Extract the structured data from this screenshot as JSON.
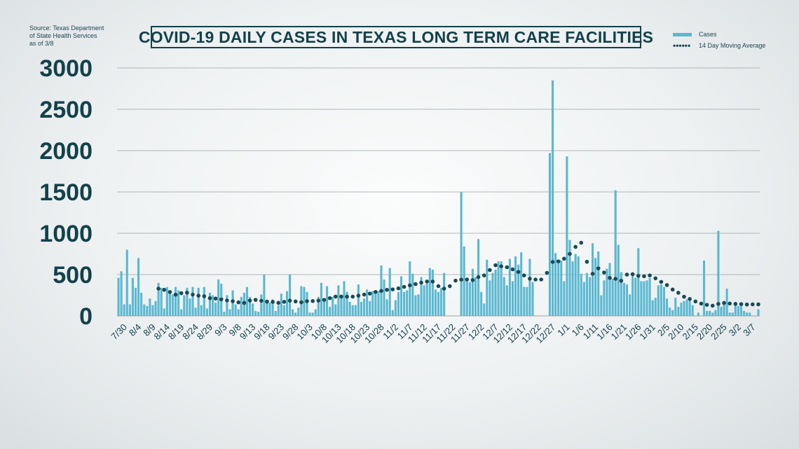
{
  "source_lines": [
    "Source: Texas Department",
    "of State Health Services",
    "as of 3/8"
  ],
  "colors": {
    "bar": "#5bb8d0",
    "avg": "#1b4a55",
    "axis_text": "#13414b",
    "grid": "#9aa3a6"
  },
  "chart_data": {
    "type": "bar",
    "title": "COVID-19 DAILY CASES IN TEXAS LONG TERM CARE FACILITIES",
    "xlabel": "",
    "ylabel": "",
    "ylim": [
      0,
      3000
    ],
    "yticks": [
      0,
      500,
      1000,
      1500,
      2000,
      2500,
      3000
    ],
    "grid": true,
    "legend_position": "top-right",
    "x_tick_labels": [
      "7/30",
      "8/4",
      "8/9",
      "8/14",
      "8/19",
      "8/24",
      "8/29",
      "9/3",
      "9/8",
      "9/13",
      "9/18",
      "9/23",
      "9/28",
      "10/3",
      "10/8",
      "10/13",
      "10/18",
      "10/23",
      "10/28",
      "11/2",
      "11/7",
      "11/12",
      "11/17",
      "11/22",
      "11/27",
      "12/2",
      "12/7",
      "12/12",
      "12/17",
      "12/22",
      "12/27",
      "1/1",
      "1/6",
      "1/11",
      "1/16",
      "1/21",
      "1/26",
      "1/31",
      "2/5",
      "2/10",
      "2/15",
      "2/20",
      "2/25",
      "3/2",
      "3/7"
    ],
    "x_tick_step_days": 5,
    "series": [
      {
        "name": "Cases",
        "type": "bar",
        "values": [
          460,
          540,
          140,
          800,
          140,
          460,
          340,
          700,
          280,
          140,
          120,
          210,
          130,
          180,
          400,
          340,
          90,
          350,
          290,
          260,
          350,
          310,
          80,
          250,
          340,
          210,
          350,
          100,
          340,
          130,
          350,
          90,
          280,
          250,
          160,
          440,
          390,
          50,
          250,
          80,
          310,
          140,
          80,
          230,
          280,
          350,
          230,
          150,
          60,
          50,
          260,
          500,
          190,
          160,
          200,
          60,
          130,
          270,
          130,
          300,
          500,
          80,
          40,
          100,
          360,
          350,
          290,
          40,
          40,
          80,
          230,
          400,
          210,
          360,
          110,
          230,
          140,
          370,
          230,
          420,
          290,
          170,
          130,
          130,
          380,
          170,
          210,
          320,
          180,
          300,
          270,
          300,
          610,
          440,
          200,
          580,
          70,
          190,
          290,
          480,
          290,
          310,
          660,
          510,
          250,
          260,
          470,
          370,
          390,
          580,
          560,
          320,
          290,
          340,
          520,
          0,
          0,
          0,
          0,
          0,
          1500,
          840,
          420,
          410,
          570,
          470,
          930,
          290,
          150,
          680,
          430,
          520,
          560,
          660,
          660,
          470,
          370,
          690,
          420,
          720,
          620,
          770,
          350,
          350,
          690,
          410,
          0,
          0,
          0,
          0,
          0,
          1970,
          2850,
          760,
          650,
          670,
          420,
          1930,
          920,
          660,
          750,
          720,
          510,
          410,
          520,
          470,
          880,
          700,
          780,
          250,
          430,
          570,
          640,
          450,
          1520,
          860,
          530,
          400,
          380,
          260,
          490,
          460,
          820,
          420,
          420,
          430,
          460,
          190,
          220,
          370,
          380,
          350,
          210,
          100,
          70,
          220,
          110,
          160,
          180,
          200,
          210,
          130,
          0,
          40,
          0,
          670,
          60,
          60,
          40,
          70,
          1030,
          110,
          160,
          330,
          40,
          40,
          170,
          120,
          140,
          60,
          40,
          40,
          0,
          0,
          80
        ]
      },
      {
        "name": "14 Day Moving Average",
        "type": "line",
        "values": [
          null,
          null,
          null,
          null,
          null,
          null,
          null,
          null,
          null,
          null,
          null,
          null,
          null,
          null,
          330,
          326,
          316,
          303,
          289,
          273,
          257,
          262,
          275,
          287,
          281,
          272,
          258,
          246,
          245,
          243,
          238,
          224,
          215,
          212,
          210,
          202,
          200,
          194,
          187,
          183,
          178,
          171,
          164,
          158,
          157,
          177,
          186,
          180,
          194,
          188,
          183,
          183,
          173,
          173,
          170,
          160,
          158,
          167,
          170,
          174,
          185,
          178,
          175,
          165,
          165,
          173,
          178,
          174,
          180,
          182,
          185,
          190,
          195,
          205,
          215,
          228,
          234,
          237,
          234,
          232,
          233,
          233,
          233,
          242,
          245,
          250,
          258,
          264,
          270,
          275,
          290,
          300,
          303,
          315,
          315,
          318,
          321,
          326,
          333,
          342,
          351,
          360,
          370,
          378,
          385,
          394,
          403,
          413,
          416,
          417,
          416,
          385,
          360,
          340,
          330,
          330,
          360,
          403,
          427,
          433,
          439,
          440,
          440,
          440,
          433,
          454,
          470,
          480,
          490,
          516,
          555,
          593,
          613,
          603,
          600,
          607,
          589,
          570,
          563,
          556,
          532,
          510,
          490,
          470,
          450,
          440,
          440,
          440,
          440,
          460,
          521,
          614,
          653,
          660,
          660,
          660,
          692,
          726,
          750,
          790,
          835,
          877,
          885,
          760,
          655,
          560,
          510,
          560,
          575,
          560,
          525,
          500,
          460,
          440,
          449,
          450,
          425,
          450,
          500,
          500,
          505,
          490,
          485,
          490,
          480,
          485,
          490,
          473,
          455,
          430,
          412,
          393,
          373,
          349,
          319,
          300,
          280,
          255,
          232,
          218,
          205,
          187,
          175,
          160,
          149,
          141,
          134,
          128,
          124,
          130,
          145,
          157,
          157,
          158,
          150,
          145,
          145,
          145,
          143,
          140,
          138,
          138,
          140,
          140,
          140
        ]
      }
    ]
  }
}
